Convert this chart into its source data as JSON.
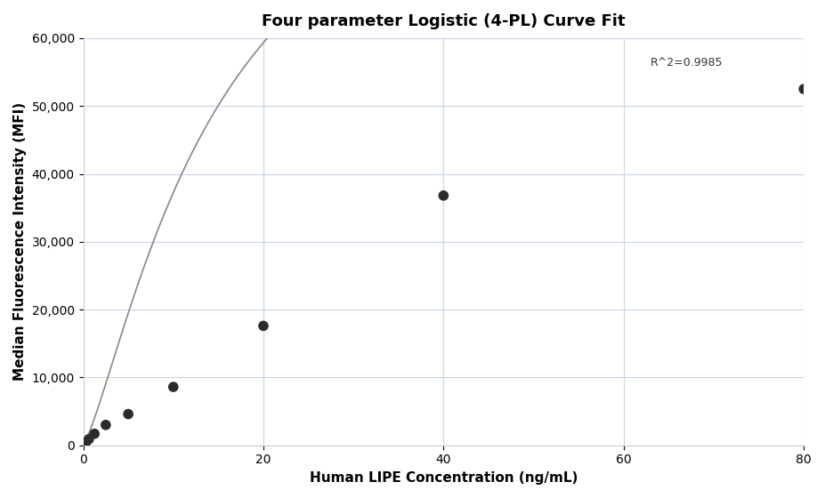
{
  "title": "Four parameter Logistic (4-PL) Curve Fit",
  "xlabel": "Human LIPE Concentration (ng/mL)",
  "ylabel": "Median Fluorescence Intensity (MFI)",
  "scatter_x": [
    0.31,
    0.63,
    1.25,
    2.5,
    5.0,
    10.0,
    20.0,
    40.0,
    80.0
  ],
  "scatter_y": [
    500,
    900,
    1700,
    3000,
    4600,
    8600,
    17600,
    36800,
    52500
  ],
  "xlim": [
    0,
    80
  ],
  "ylim": [
    0,
    60000
  ],
  "xticks": [
    0,
    20,
    40,
    60,
    80
  ],
  "yticks": [
    0,
    10000,
    20000,
    30000,
    40000,
    50000,
    60000
  ],
  "r_squared": "R^2=0.9985",
  "r_squared_x": 63,
  "r_squared_y": 55500,
  "dot_color": "#2b2b2b",
  "line_color": "#888888",
  "grid_color": "#c8d4e8",
  "background_color": "#ffffff",
  "title_fontsize": 13,
  "label_fontsize": 11,
  "tick_fontsize": 10,
  "annotation_fontsize": 9
}
